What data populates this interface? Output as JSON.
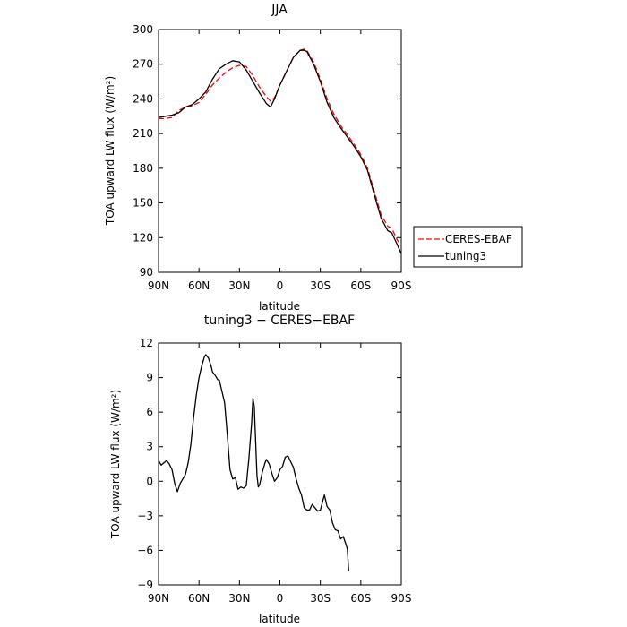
{
  "chart_data": [
    {
      "type": "line",
      "title": "JJA",
      "xlabel": "latitude",
      "ylabel": "TOA upward LW flux (W/m²)",
      "x_domain": [
        90,
        -90
      ],
      "ylim": [
        90,
        300
      ],
      "x_ticks": [
        {
          "value": 90,
          "label": "90N"
        },
        {
          "value": 60,
          "label": "60N"
        },
        {
          "value": 30,
          "label": "30N"
        },
        {
          "value": 0,
          "label": "0"
        },
        {
          "value": -30,
          "label": "30S"
        },
        {
          "value": -60,
          "label": "60S"
        },
        {
          "value": -90,
          "label": "90S"
        }
      ],
      "y_ticks": [
        {
          "value": 90,
          "label": "90"
        },
        {
          "value": 120,
          "label": "120"
        },
        {
          "value": 150,
          "label": "150"
        },
        {
          "value": 180,
          "label": "180"
        },
        {
          "value": 210,
          "label": "210"
        },
        {
          "value": 240,
          "label": "240"
        },
        {
          "value": 270,
          "label": "270"
        },
        {
          "value": 300,
          "label": "300"
        }
      ],
      "legend": {
        "placement": "right"
      },
      "series": [
        {
          "name": "CERES-EBAF",
          "color": "#ff0000",
          "dash": "dashed",
          "points": [
            [
              90,
              223
            ],
            [
              85,
              223
            ],
            [
              80,
              224
            ],
            [
              75,
              230
            ],
            [
              70,
              233
            ],
            [
              65,
              234
            ],
            [
              60,
              237
            ],
            [
              55,
              244
            ],
            [
              50,
              252
            ],
            [
              45,
              258
            ],
            [
              40,
              263
            ],
            [
              35,
              267
            ],
            [
              30,
              269
            ],
            [
              25,
              268
            ],
            [
              20,
              260
            ],
            [
              15,
              250
            ],
            [
              10,
              242
            ],
            [
              7,
              238
            ],
            [
              4,
              241
            ],
            [
              0,
              252
            ],
            [
              -5,
              264
            ],
            [
              -10,
              276
            ],
            [
              -15,
              282
            ],
            [
              -18,
              283
            ],
            [
              -20,
              282
            ],
            [
              -25,
              272
            ],
            [
              -30,
              257
            ],
            [
              -35,
              240
            ],
            [
              -40,
              227
            ],
            [
              -45,
              217
            ],
            [
              -50,
              209
            ],
            [
              -55,
              201
            ],
            [
              -60,
              192
            ],
            [
              -65,
              180
            ],
            [
              -70,
              160
            ],
            [
              -75,
              140
            ],
            [
              -80,
              130
            ],
            [
              -83,
              128
            ],
            [
              -87,
              118
            ],
            [
              -90,
              113
            ]
          ]
        },
        {
          "name": "tuning3",
          "color": "#000000",
          "dash": "solid",
          "points": [
            [
              90,
              224
            ],
            [
              85,
              225
            ],
            [
              80,
              226
            ],
            [
              75,
              228
            ],
            [
              70,
              233
            ],
            [
              65,
              235
            ],
            [
              60,
              240
            ],
            [
              55,
              246
            ],
            [
              50,
              257
            ],
            [
              45,
              266
            ],
            [
              40,
              270
            ],
            [
              35,
              273
            ],
            [
              30,
              272
            ],
            [
              25,
              265
            ],
            [
              20,
              255
            ],
            [
              15,
              245
            ],
            [
              10,
              236
            ],
            [
              7,
              233
            ],
            [
              4,
              240
            ],
            [
              0,
              252
            ],
            [
              -5,
              264
            ],
            [
              -10,
              276
            ],
            [
              -15,
              282
            ],
            [
              -18,
              282
            ],
            [
              -20,
              281
            ],
            [
              -25,
              270
            ],
            [
              -30,
              255
            ],
            [
              -35,
              237
            ],
            [
              -40,
              224
            ],
            [
              -45,
              215
            ],
            [
              -50,
              207
            ],
            [
              -55,
              199
            ],
            [
              -60,
              190
            ],
            [
              -65,
              178
            ],
            [
              -70,
              157
            ],
            [
              -75,
              137
            ],
            [
              -80,
              126
            ],
            [
              -83,
              124
            ],
            [
              -87,
              114
            ],
            [
              -90,
              106
            ]
          ]
        }
      ]
    },
    {
      "type": "line",
      "title": "tuning3 − CERES−EBAF",
      "xlabel": "latitude",
      "ylabel": "TOA upward LW flux (W/m²)",
      "x_domain": [
        90,
        -90
      ],
      "ylim": [
        -9,
        12
      ],
      "x_ticks": [
        {
          "value": 90,
          "label": "90N"
        },
        {
          "value": 60,
          "label": "60N"
        },
        {
          "value": 30,
          "label": "30N"
        },
        {
          "value": 0,
          "label": "0"
        },
        {
          "value": -30,
          "label": "30S"
        },
        {
          "value": -60,
          "label": "60S"
        },
        {
          "value": -90,
          "label": "90S"
        }
      ],
      "y_ticks": [
        {
          "value": -9,
          "label": "−9"
        },
        {
          "value": -6,
          "label": "−6"
        },
        {
          "value": -3,
          "label": "−3"
        },
        {
          "value": 0,
          "label": "0"
        },
        {
          "value": 3,
          "label": "3"
        },
        {
          "value": 6,
          "label": "6"
        },
        {
          "value": 9,
          "label": "9"
        },
        {
          "value": 12,
          "label": "12"
        }
      ],
      "series": [
        {
          "name": "",
          "color": "#000000",
          "dash": "solid",
          "points": [
            [
              90,
              1.8
            ],
            [
              88,
              1.4
            ],
            [
              86,
              1.6
            ],
            [
              84,
              1.8
            ],
            [
              82,
              1.5
            ],
            [
              80,
              1.0
            ],
            [
              78,
              -0.2
            ],
            [
              76,
              -0.9
            ],
            [
              74,
              -0.2
            ],
            [
              72,
              0.2
            ],
            [
              70,
              0.6
            ],
            [
              68,
              1.6
            ],
            [
              66,
              3.2
            ],
            [
              64,
              5.5
            ],
            [
              62,
              7.5
            ],
            [
              60,
              9.0
            ],
            [
              58,
              10.0
            ],
            [
              56,
              10.8
            ],
            [
              55,
              11.0
            ],
            [
              53,
              10.7
            ],
            [
              51,
              10.0
            ],
            [
              50,
              9.5
            ],
            [
              48,
              9.2
            ],
            [
              46,
              8.8
            ],
            [
              45,
              8.8
            ],
            [
              43,
              7.8
            ],
            [
              41,
              6.8
            ],
            [
              39,
              4.0
            ],
            [
              37,
              1.0
            ],
            [
              35,
              0.2
            ],
            [
              33,
              0.3
            ],
            [
              31,
              -0.7
            ],
            [
              29,
              -0.5
            ],
            [
              27,
              -0.6
            ],
            [
              25,
              -0.4
            ],
            [
              23,
              2.0
            ],
            [
              21,
              5.0
            ],
            [
              20,
              7.2
            ],
            [
              19,
              6.5
            ],
            [
              18,
              3.5
            ],
            [
              17,
              0.5
            ],
            [
              16,
              -0.5
            ],
            [
              15,
              -0.3
            ],
            [
              13,
              0.8
            ],
            [
              11,
              1.6
            ],
            [
              10,
              1.9
            ],
            [
              8,
              1.5
            ],
            [
              6,
              0.7
            ],
            [
              4,
              0.0
            ],
            [
              2,
              0.3
            ],
            [
              0,
              1.0
            ],
            [
              -2,
              1.3
            ],
            [
              -4,
              2.1
            ],
            [
              -6,
              2.2
            ],
            [
              -8,
              1.7
            ],
            [
              -10,
              1.2
            ],
            [
              -12,
              0.2
            ],
            [
              -14,
              -0.6
            ],
            [
              -16,
              -1.2
            ],
            [
              -18,
              -2.3
            ],
            [
              -20,
              -2.5
            ],
            [
              -22,
              -2.5
            ],
            [
              -24,
              -2.0
            ],
            [
              -26,
              -2.3
            ],
            [
              -28,
              -2.6
            ],
            [
              -30,
              -2.5
            ],
            [
              -32,
              -1.6
            ],
            [
              -33,
              -1.2
            ],
            [
              -35,
              -2.2
            ],
            [
              -37,
              -2.5
            ],
            [
              -39,
              -3.6
            ],
            [
              -41,
              -4.2
            ],
            [
              -43,
              -4.3
            ],
            [
              -45,
              -5.0
            ],
            [
              -47,
              -4.8
            ],
            [
              -49,
              -5.5
            ],
            [
              -50,
              -5.9
            ],
            [
              -51,
              -7.8
            ]
          ]
        }
      ]
    }
  ]
}
